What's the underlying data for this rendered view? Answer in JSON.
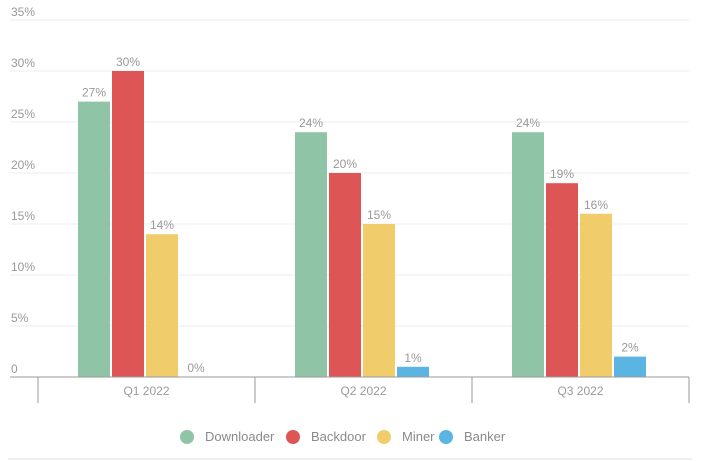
{
  "chart_data": {
    "type": "bar",
    "categories": [
      "Q1 2022",
      "Q2 2022",
      "Q3 2022"
    ],
    "series": [
      {
        "name": "Downloader",
        "color": "#8fc5a6",
        "values": [
          27,
          24,
          24
        ],
        "labels": [
          "27%",
          "24%",
          "24%"
        ]
      },
      {
        "name": "Backdoor",
        "color": "#dd5555",
        "values": [
          30,
          20,
          19
        ],
        "labels": [
          "30%",
          "20%",
          "19%"
        ]
      },
      {
        "name": "Miner",
        "color": "#f0cd6a",
        "values": [
          14,
          15,
          16
        ],
        "labels": [
          "14%",
          "15%",
          "16%"
        ]
      },
      {
        "name": "Banker",
        "color": "#5ab5e3",
        "values": [
          0,
          1,
          2
        ],
        "labels": [
          "0%",
          "1%",
          "2%"
        ]
      }
    ],
    "y_ticks": [
      {
        "value": 0,
        "label": "0"
      },
      {
        "value": 5,
        "label": "5%"
      },
      {
        "value": 10,
        "label": "10%"
      },
      {
        "value": 15,
        "label": "15%"
      },
      {
        "value": 20,
        "label": "20%"
      },
      {
        "value": 25,
        "label": "25%"
      },
      {
        "value": 30,
        "label": "30%"
      },
      {
        "value": 35,
        "label": "35%"
      }
    ],
    "ylim": [
      0,
      35
    ],
    "grid": true,
    "legend_position": "bottom"
  }
}
